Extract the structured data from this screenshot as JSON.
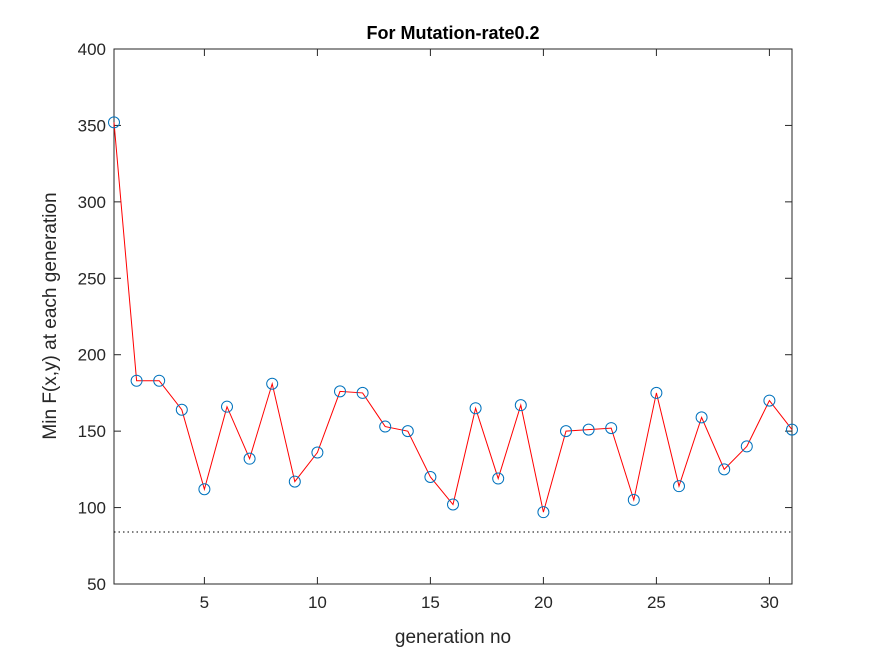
{
  "chart_data": {
    "type": "line",
    "title": "For Mutation-rate0.2",
    "xlabel": "generation no",
    "ylabel": "Min F(x,y) at each generation",
    "xlim": [
      1,
      31
    ],
    "ylim": [
      50,
      400
    ],
    "xticks": [
      5,
      10,
      15,
      20,
      25,
      30
    ],
    "yticks": [
      50,
      100,
      150,
      200,
      250,
      300,
      350,
      400
    ],
    "box": true,
    "grid": false,
    "reference_line": {
      "y": 84,
      "style": "dotted"
    },
    "colors": {
      "line": "#ff0000",
      "marker": "#0072bd",
      "axes": "#262626"
    },
    "series": [
      {
        "marker": "circle",
        "x": [
          1,
          2,
          3,
          4,
          5,
          6,
          7,
          8,
          9,
          10,
          11,
          12,
          13,
          14,
          15,
          16,
          17,
          18,
          19,
          20,
          21,
          22,
          23,
          24,
          25,
          26,
          27,
          28,
          29,
          30,
          31
        ],
        "y": [
          352,
          183,
          183,
          164,
          112,
          166,
          132,
          181,
          117,
          136,
          176,
          175,
          153,
          150,
          120,
          102,
          165,
          119,
          167,
          97,
          150,
          151,
          152,
          105,
          175,
          114,
          159,
          125,
          140,
          170,
          151
        ]
      }
    ]
  }
}
